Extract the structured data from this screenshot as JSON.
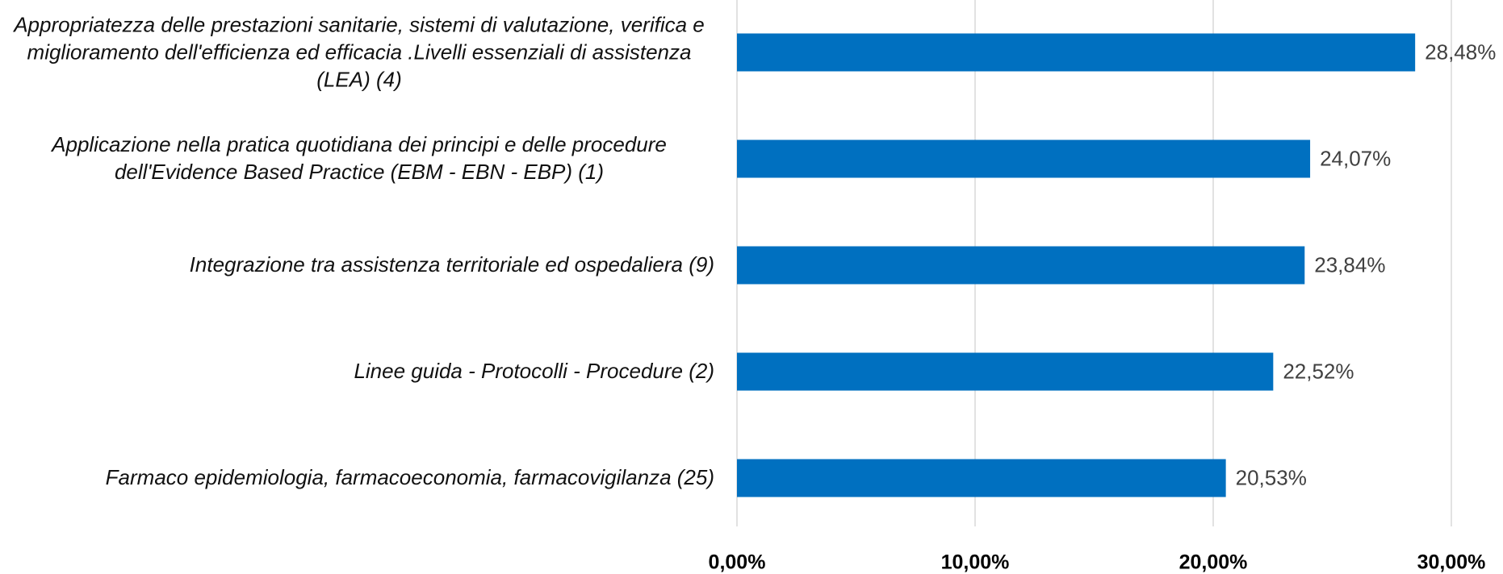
{
  "chart_data": {
    "type": "barh",
    "categories": [
      "Appropriatezza delle prestazioni sanitarie, sistemi di valutazione, verifica e miglioramento dell'efficienza ed efficacia .Livelli essenziali di assistenza (LEA) (4)",
      "Applicazione nella pratica quotidiana dei principi e delle procedure dell'Evidence Based Practice (EBM - EBN - EBP) (1)",
      "Integrazione tra assistenza territoriale ed ospedaliera (9)",
      "Linee guida - Protocolli - Procedure (2)",
      "Farmaco epidemiologia, farmacoeconomia, farmacovigilanza (25)"
    ],
    "values": [
      28.48,
      24.07,
      23.84,
      22.52,
      20.53
    ],
    "value_labels": [
      "28,48%",
      "24,07%",
      "23,84%",
      "22,52%",
      "20,53%"
    ],
    "color": "#0070c0",
    "xlim": [
      0,
      30
    ],
    "xticks": [
      {
        "value": 0,
        "label": "0,00%"
      },
      {
        "value": 10,
        "label": "10,00%"
      },
      {
        "value": 20,
        "label": "20,00%"
      },
      {
        "value": 30,
        "label": "30,00%"
      }
    ],
    "grid": true
  }
}
